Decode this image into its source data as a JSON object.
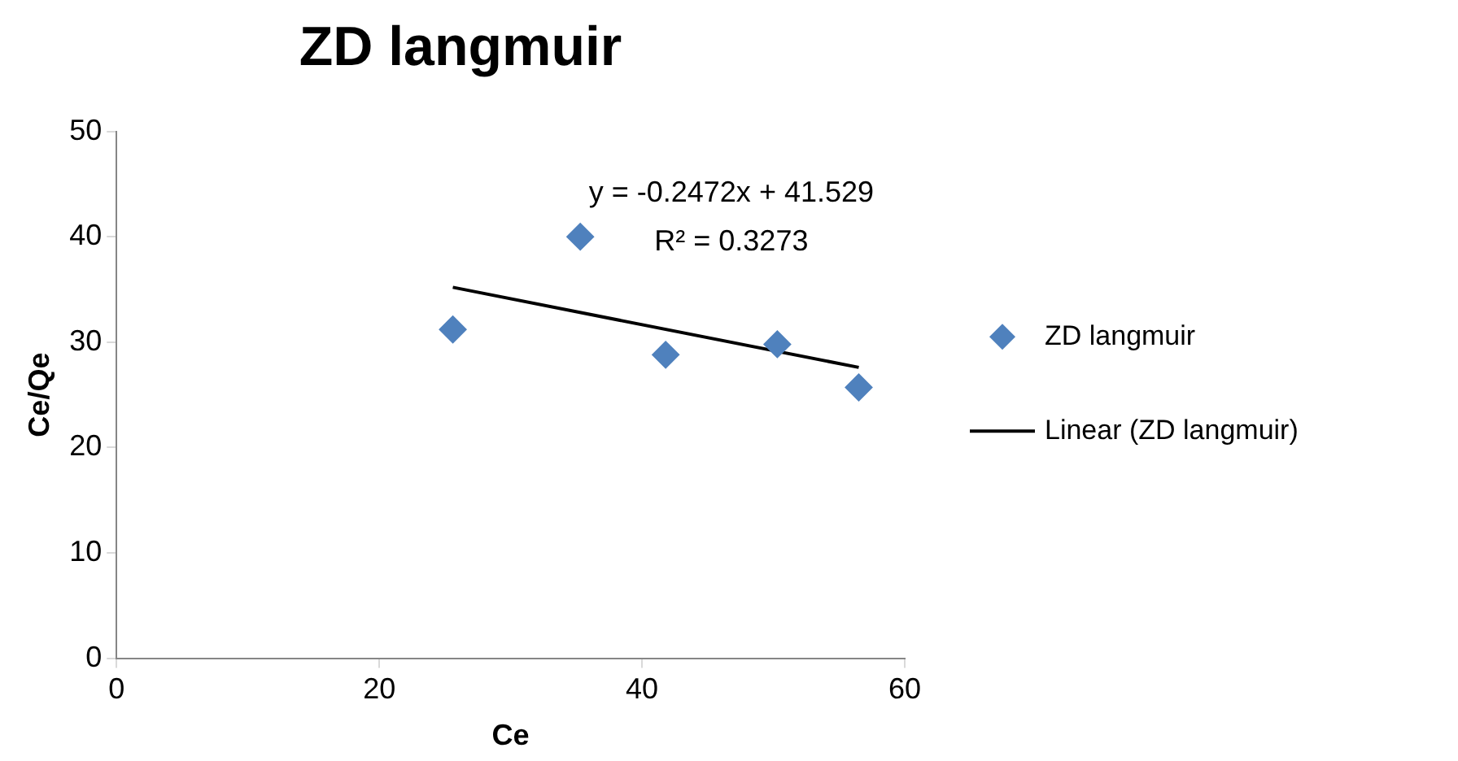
{
  "chart_data": {
    "type": "scatter",
    "title": "ZD langmuir",
    "xlabel": "Ce",
    "ylabel": "Ce/Qe",
    "xlim": [
      0,
      60
    ],
    "xticks": [
      0,
      20,
      40,
      60
    ],
    "ylim": [
      0,
      50
    ],
    "yticks": [
      0,
      10,
      20,
      30,
      40,
      50
    ],
    "grid": false,
    "legend": "right",
    "series": [
      {
        "name": "ZD langmuir",
        "type": "scatter",
        "marker": "diamond",
        "color": "#4f81bd",
        "x": [
          25.6,
          35.3,
          41.8,
          50.3,
          56.5
        ],
        "values": [
          31.2,
          40.0,
          28.8,
          29.8,
          25.7
        ]
      },
      {
        "name": "Linear (ZD langmuir)",
        "type": "line",
        "marker": "none",
        "color": "#000000",
        "x": [
          25.6,
          56.5
        ],
        "values": [
          35.2,
          27.6
        ]
      }
    ],
    "annotations": [
      "y = -0.2472x + 41.529",
      "R² = 0.3273"
    ]
  }
}
